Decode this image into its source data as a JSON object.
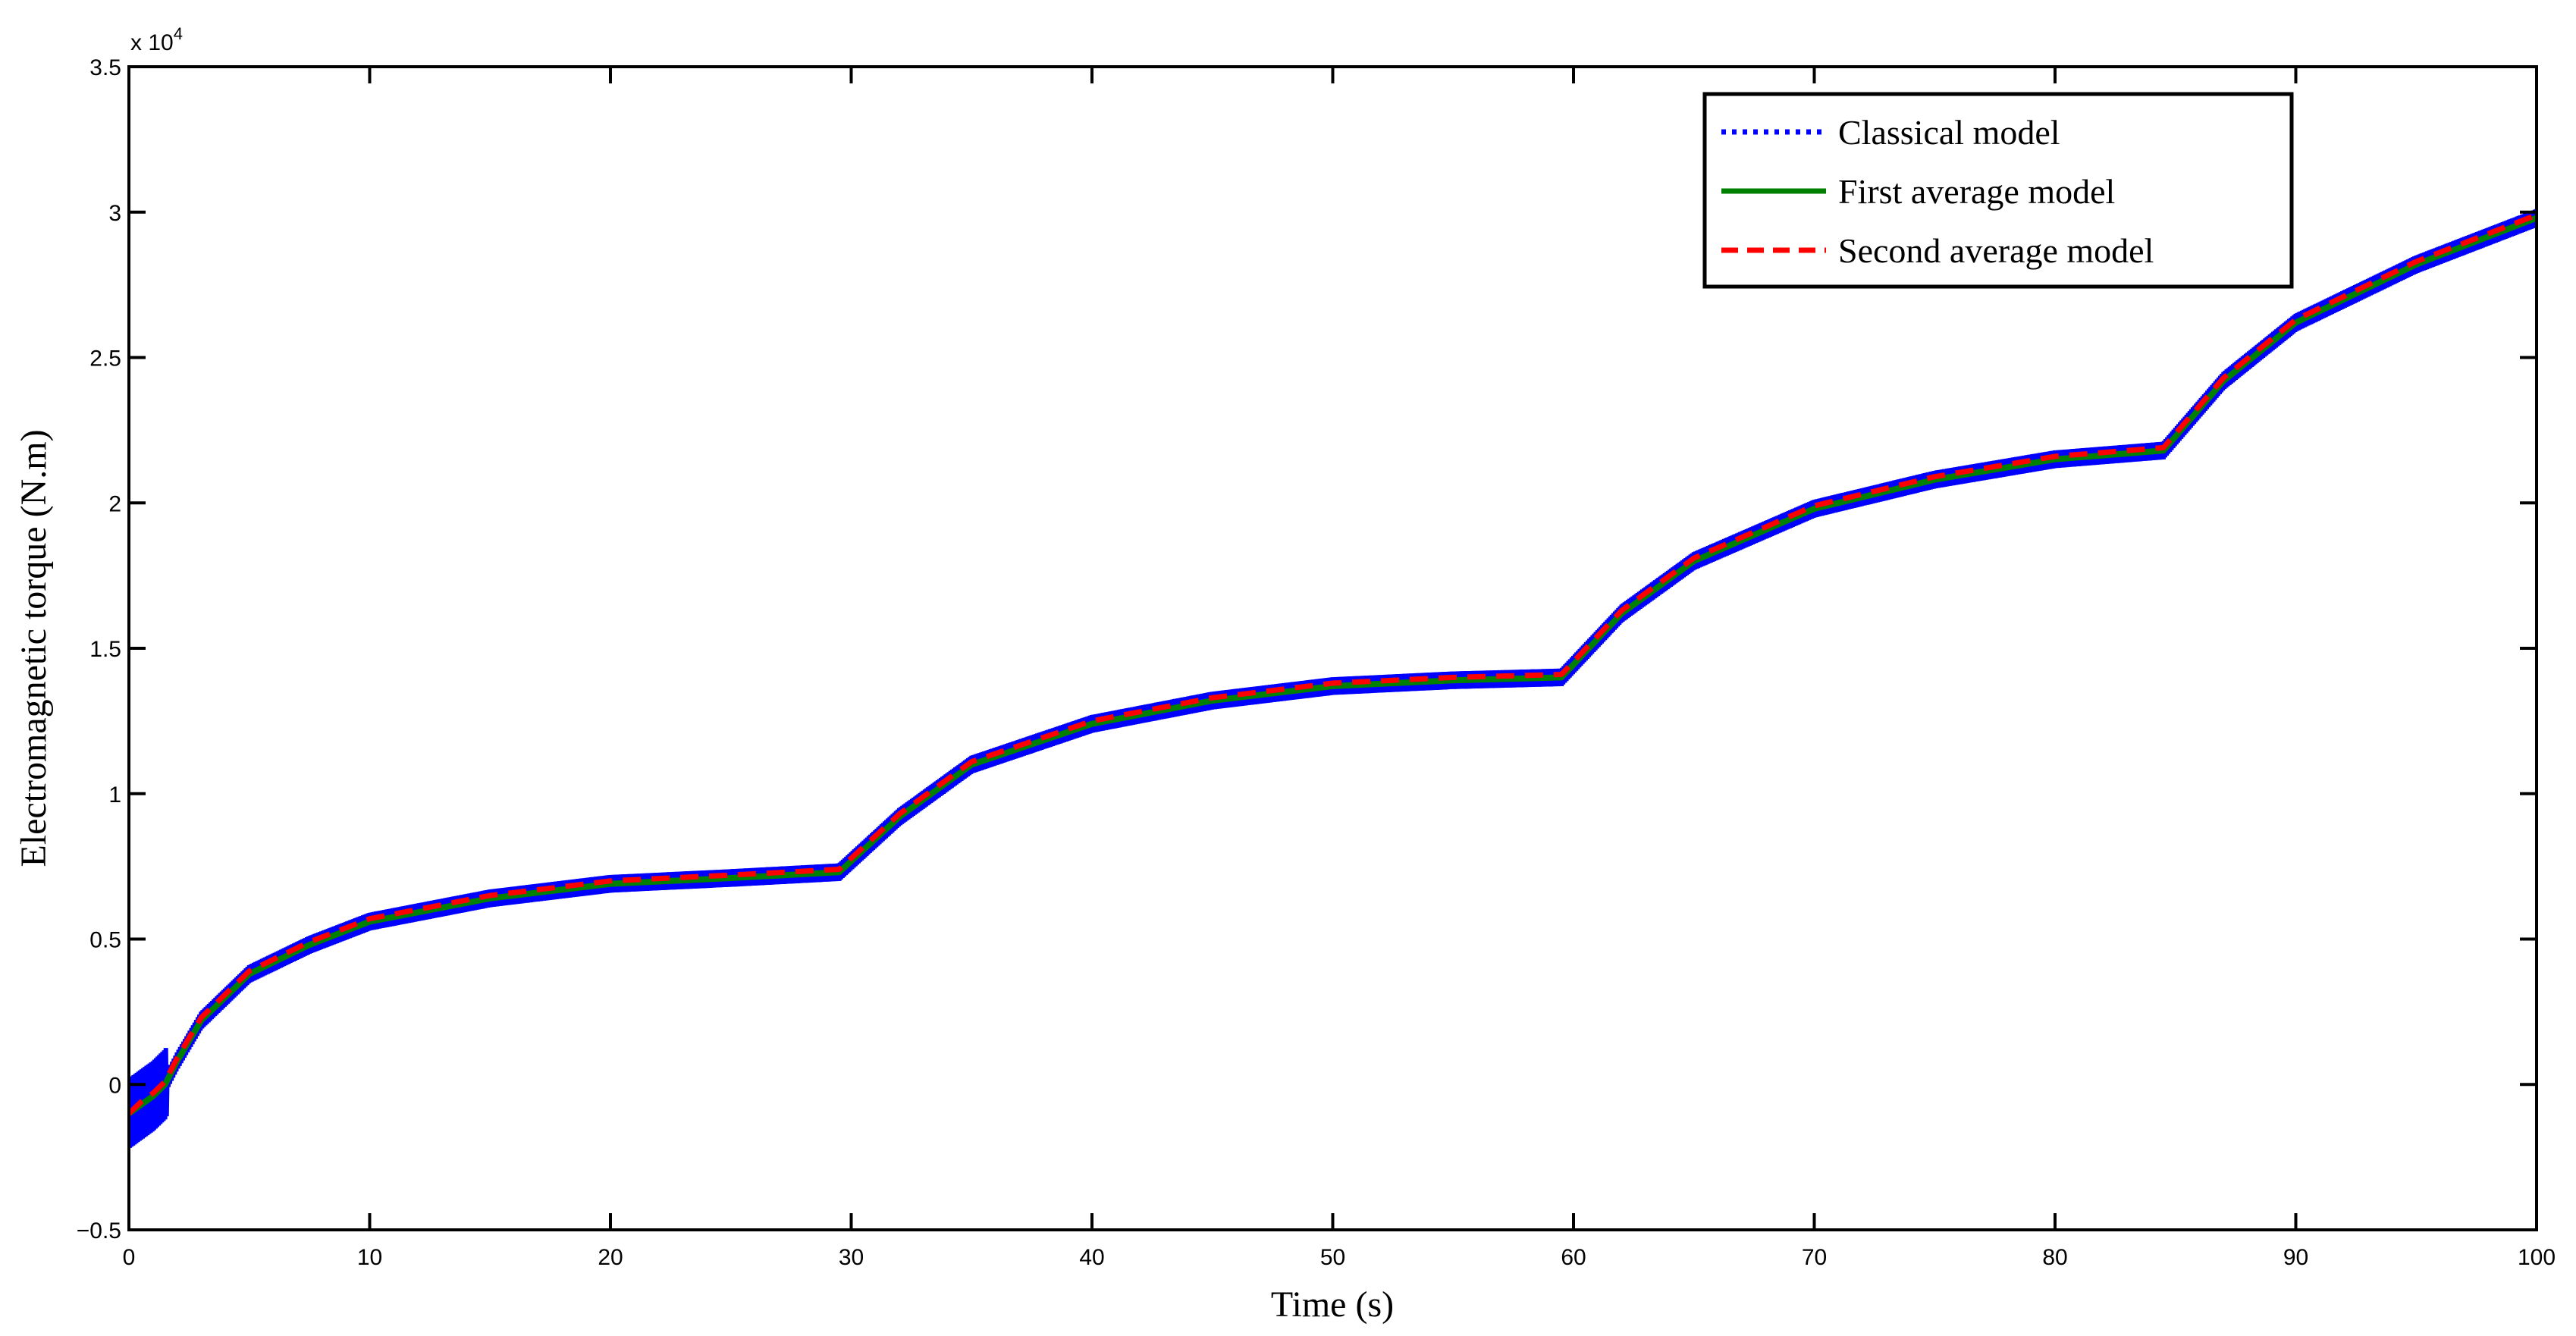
{
  "chart_data": {
    "type": "line",
    "xlabel": "Time (s)",
    "ylabel": "Electromagnetic torque (N.m)",
    "exponent_label": "x 10",
    "exponent_power": "4",
    "xlim": [
      0,
      100
    ],
    "ylim": [
      -0.5,
      3.5
    ],
    "xticks": [
      0,
      10,
      20,
      30,
      40,
      50,
      60,
      70,
      80,
      90,
      100
    ],
    "yticks": [
      -0.5,
      0,
      0.5,
      1,
      1.5,
      2,
      2.5,
      3,
      3.5
    ],
    "xtick_labels": [
      "0",
      "10",
      "20",
      "30",
      "40",
      "50",
      "60",
      "70",
      "80",
      "90",
      "100"
    ],
    "ytick_labels": [
      "−0.5",
      "0",
      "0.5",
      "1",
      "1.5",
      "2",
      "2.5",
      "3",
      "3.5"
    ],
    "grid": false,
    "legend_position": "top-right",
    "series": [
      {
        "name": "Classical model",
        "color": "#0000ff",
        "style": "dotted",
        "ripple": 0.03,
        "x": [
          0,
          0.5,
          1,
          1.5,
          2,
          3,
          5,
          7.5,
          10,
          15,
          20,
          25,
          29.5,
          32,
          35,
          40,
          45,
          50,
          55,
          59.5,
          62,
          65,
          70,
          75,
          80,
          84.5,
          87,
          90,
          95,
          100
        ],
        "values": [
          -0.1,
          -0.07,
          -0.04,
          0.0,
          0.08,
          0.22,
          0.38,
          0.48,
          0.56,
          0.64,
          0.69,
          0.71,
          0.73,
          0.92,
          1.1,
          1.24,
          1.32,
          1.37,
          1.39,
          1.4,
          1.62,
          1.8,
          1.98,
          2.08,
          2.15,
          2.18,
          2.42,
          2.62,
          2.82,
          2.98
        ]
      },
      {
        "name": "First average model",
        "color": "#008000",
        "style": "solid",
        "x": [
          0,
          0.5,
          1,
          1.5,
          2,
          3,
          5,
          7.5,
          10,
          15,
          20,
          25,
          29.5,
          32,
          35,
          40,
          45,
          50,
          55,
          59.5,
          62,
          65,
          70,
          75,
          80,
          84.5,
          87,
          90,
          95,
          100
        ],
        "values": [
          -0.1,
          -0.07,
          -0.04,
          0.0,
          0.08,
          0.22,
          0.38,
          0.48,
          0.56,
          0.64,
          0.69,
          0.71,
          0.73,
          0.92,
          1.1,
          1.24,
          1.32,
          1.37,
          1.39,
          1.4,
          1.62,
          1.8,
          1.98,
          2.08,
          2.15,
          2.18,
          2.42,
          2.62,
          2.82,
          2.98
        ]
      },
      {
        "name": "Second average model",
        "color": "#ff0000",
        "style": "dashed",
        "x": [
          0,
          0.5,
          1,
          1.5,
          2,
          3,
          5,
          7.5,
          10,
          15,
          20,
          25,
          29.5,
          32,
          35,
          40,
          45,
          50,
          55,
          59.5,
          62,
          65,
          70,
          75,
          80,
          84.5,
          87,
          90,
          95,
          100
        ],
        "values": [
          -0.1,
          -0.06,
          -0.03,
          0.01,
          0.09,
          0.23,
          0.39,
          0.49,
          0.57,
          0.65,
          0.7,
          0.72,
          0.74,
          0.93,
          1.11,
          1.25,
          1.33,
          1.38,
          1.4,
          1.41,
          1.63,
          1.81,
          1.99,
          2.09,
          2.16,
          2.19,
          2.43,
          2.63,
          2.83,
          2.99
        ]
      }
    ]
  }
}
